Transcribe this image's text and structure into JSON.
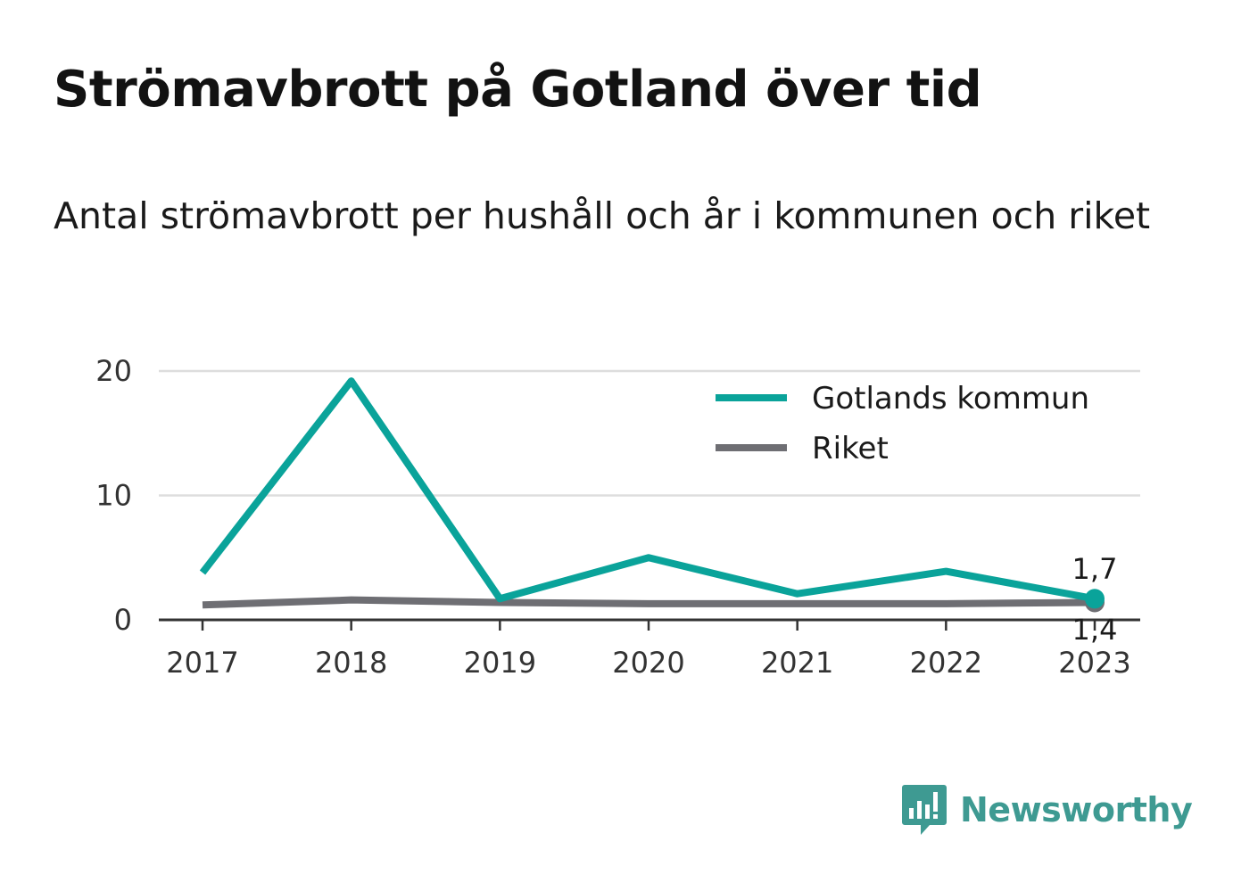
{
  "title": "Strömavbrott på Gotland över tid",
  "subtitle": "Antal strömavbrott per hushåll och år i kommunen och riket",
  "brand": {
    "name": "Newsworthy",
    "icon": "newsworthy-logo-icon",
    "color": "#3e9a92"
  },
  "chart_data": {
    "type": "line",
    "x": [
      "2017",
      "2018",
      "2019",
      "2020",
      "2021",
      "2022",
      "2023"
    ],
    "ylim": [
      0,
      20
    ],
    "yticks": [
      "0",
      "10",
      "20"
    ],
    "grid": true,
    "legend_position": "top-right",
    "series": [
      {
        "name": "Gotlands kommun",
        "color": "#0aa39a",
        "values": [
          3.8,
          19.2,
          1.7,
          5.0,
          2.1,
          3.9,
          1.7
        ]
      },
      {
        "name": "Riket",
        "color": "#6e6e73",
        "values": [
          1.2,
          1.6,
          1.4,
          1.3,
          1.3,
          1.3,
          1.4
        ]
      }
    ],
    "end_labels": [
      "1,7",
      "1,4"
    ]
  }
}
